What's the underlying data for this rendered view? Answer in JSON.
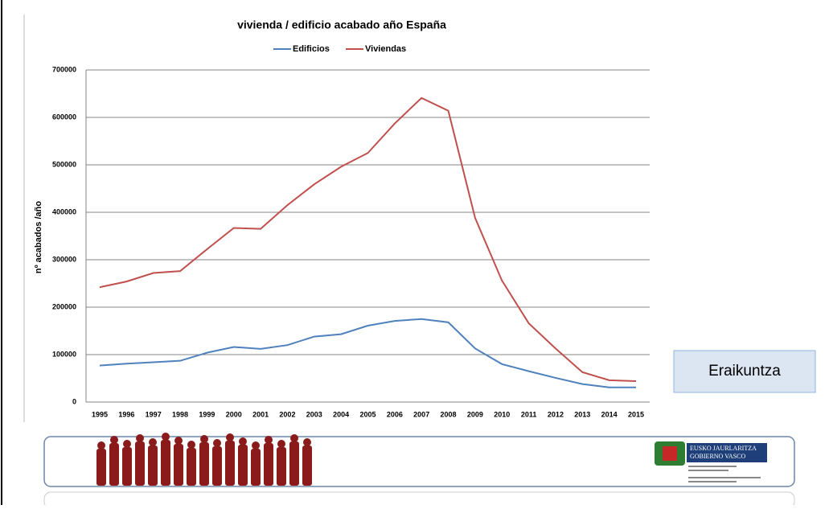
{
  "chart_data": {
    "type": "line",
    "title": "vivienda / edificio acabado  año España",
    "y_label": "nº acabados /año",
    "categories": [
      "1995",
      "1996",
      "1997",
      "1998",
      "1999",
      "2000",
      "2001",
      "2002",
      "2003",
      "2004",
      "2005",
      "2006",
      "2007",
      "2008",
      "2009",
      "2010",
      "2011",
      "2012",
      "2013",
      "2014",
      "2015"
    ],
    "series": [
      {
        "name": "Edificios",
        "color": "#4f81bd",
        "values": [
          77000,
          81000,
          84000,
          87000,
          104000,
          116000,
          112000,
          120000,
          138000,
          143000,
          161000,
          171000,
          175000,
          168000,
          113000,
          80000,
          65000,
          51000,
          38000,
          31000,
          31000
        ]
      },
      {
        "name": "Viviendas",
        "color": "#c0504d",
        "values": [
          242000,
          254000,
          272000,
          276000,
          322000,
          367000,
          365000,
          415000,
          459000,
          496000,
          525000,
          587000,
          641000,
          614000,
          388000,
          256000,
          166000,
          113000,
          63000,
          46000,
          44000
        ]
      }
    ],
    "ylim": [
      0,
      700000
    ],
    "yticks": [
      0,
      100000,
      200000,
      300000,
      400000,
      500000,
      600000,
      700000
    ],
    "grid": true
  },
  "label_box": "Eraikuntza",
  "footer": {
    "logo_line1": "EUSKO JAURLARITZA",
    "logo_line2": "GOBIERNO VASCO"
  }
}
